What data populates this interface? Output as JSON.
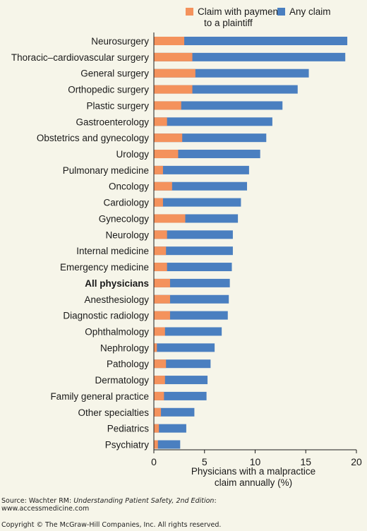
{
  "chart_data": {
    "type": "bar",
    "orientation": "horizontal",
    "stacked": "overlay",
    "categories": [
      "Neurosurgery",
      "Thoracic–cardiovascular surgery",
      "General surgery",
      "Orthopedic surgery",
      "Plastic surgery",
      "Gastroenterology",
      "Obstetrics and gynecology",
      "Urology",
      "Pulmonary medicine",
      "Oncology",
      "Cardiology",
      "Gynecology",
      "Neurology",
      "Internal medicine",
      "Emergency medicine",
      "All physicians",
      "Anesthesiology",
      "Diagnostic radiology",
      "Ophthalmology",
      "Nephrology",
      "Pathology",
      "Dermatology",
      "Family general practice",
      "Other specialties",
      "Pediatrics",
      "Psychiatry"
    ],
    "bold_categories": [
      "All physicians"
    ],
    "series": [
      {
        "name": "Claim with payment to a plaintiff",
        "legend_lines": [
          "Claim with payment",
          "to a plaintiff"
        ],
        "color": "#f4925c",
        "values": [
          3.0,
          3.8,
          4.1,
          3.8,
          2.7,
          1.3,
          2.8,
          2.4,
          0.9,
          1.8,
          0.9,
          3.1,
          1.3,
          1.2,
          1.3,
          1.6,
          1.6,
          1.6,
          1.1,
          0.3,
          1.2,
          1.1,
          1.0,
          0.7,
          0.5,
          0.4
        ]
      },
      {
        "name": "Any claim",
        "color": "#4a7fc0",
        "values": [
          19.1,
          18.9,
          15.3,
          14.2,
          12.7,
          11.7,
          11.1,
          10.5,
          9.4,
          9.2,
          8.6,
          8.3,
          7.8,
          7.8,
          7.7,
          7.5,
          7.4,
          7.3,
          6.7,
          6.0,
          5.6,
          5.3,
          5.2,
          4.0,
          3.2,
          2.6
        ]
      }
    ],
    "x_ticks": [
      0,
      5,
      10,
      15,
      20
    ],
    "xlim": [
      0,
      20
    ],
    "xlabel_lines": [
      "Physicians with a malpractice",
      "claim annually (%)"
    ],
    "legend_position": "top-right",
    "grid": false
  },
  "footer": {
    "source_prefix": "Source: Wachter RM: ",
    "source_title": "Understanding Patient Safety, 2nd Edition",
    "source_suffix": ":",
    "source_url": "www.accessmedicine.com",
    "copyright": "Copyright © The McGraw-Hill Companies, Inc. All rights reserved."
  }
}
